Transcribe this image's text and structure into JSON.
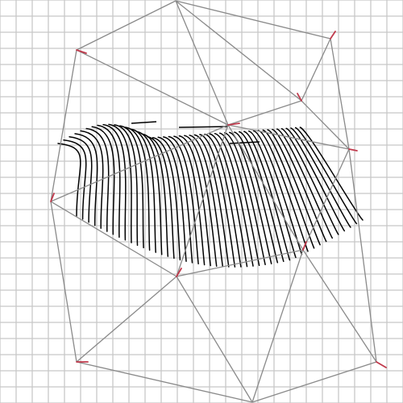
{
  "diagram": {
    "kind": "triangulated mesh with streamline field",
    "grid": {
      "visible": true,
      "color": "#c8c8c8",
      "cells_per_side": 25
    },
    "colors": {
      "background": "#ffffff",
      "grid": "#c8c8c8",
      "mesh_edge": "#8a8a8a",
      "streamline": "#000000",
      "vertex_marker": "#c0394b"
    },
    "node_count": 12,
    "triangle_count": 17,
    "streamline_count": 48
  }
}
